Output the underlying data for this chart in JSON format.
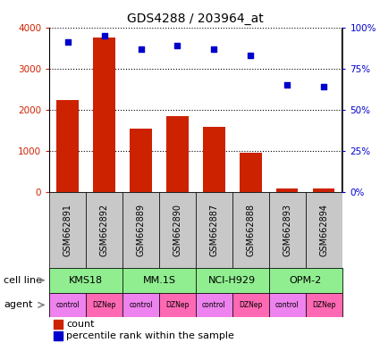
{
  "title": "GDS4288 / 203964_at",
  "samples": [
    "GSM662891",
    "GSM662892",
    "GSM662889",
    "GSM662890",
    "GSM662887",
    "GSM662888",
    "GSM662893",
    "GSM662894"
  ],
  "counts": [
    2250,
    3750,
    1550,
    1850,
    1580,
    970,
    100,
    100
  ],
  "percentile_ranks": [
    91,
    95,
    87,
    89,
    87,
    83,
    65,
    64
  ],
  "cell_lines": [
    "KMS18",
    "MM.1S",
    "NCI-H929",
    "OPM-2"
  ],
  "cell_line_spans": [
    [
      0,
      1
    ],
    [
      2,
      3
    ],
    [
      4,
      5
    ],
    [
      6,
      7
    ]
  ],
  "agents": [
    "control",
    "DZNep",
    "control",
    "DZNep",
    "control",
    "DZNep",
    "control",
    "DZNep"
  ],
  "cell_line_color": "#90EE90",
  "agent_control_color": "#EE82EE",
  "agent_dznep_color": "#FF69B4",
  "sample_bg_color": "#C8C8C8",
  "bar_color": "#CC2200",
  "dot_color": "#0000CC",
  "ylim_left": [
    0,
    4000
  ],
  "ylim_right": [
    0,
    100
  ],
  "yticks_left": [
    0,
    1000,
    2000,
    3000,
    4000
  ],
  "ytick_labels_left": [
    "0",
    "1000",
    "2000",
    "3000",
    "4000"
  ],
  "yticks_right": [
    0,
    25,
    50,
    75,
    100
  ],
  "ytick_labels_right": [
    "0%",
    "25%",
    "50%",
    "75%",
    "100%"
  ]
}
